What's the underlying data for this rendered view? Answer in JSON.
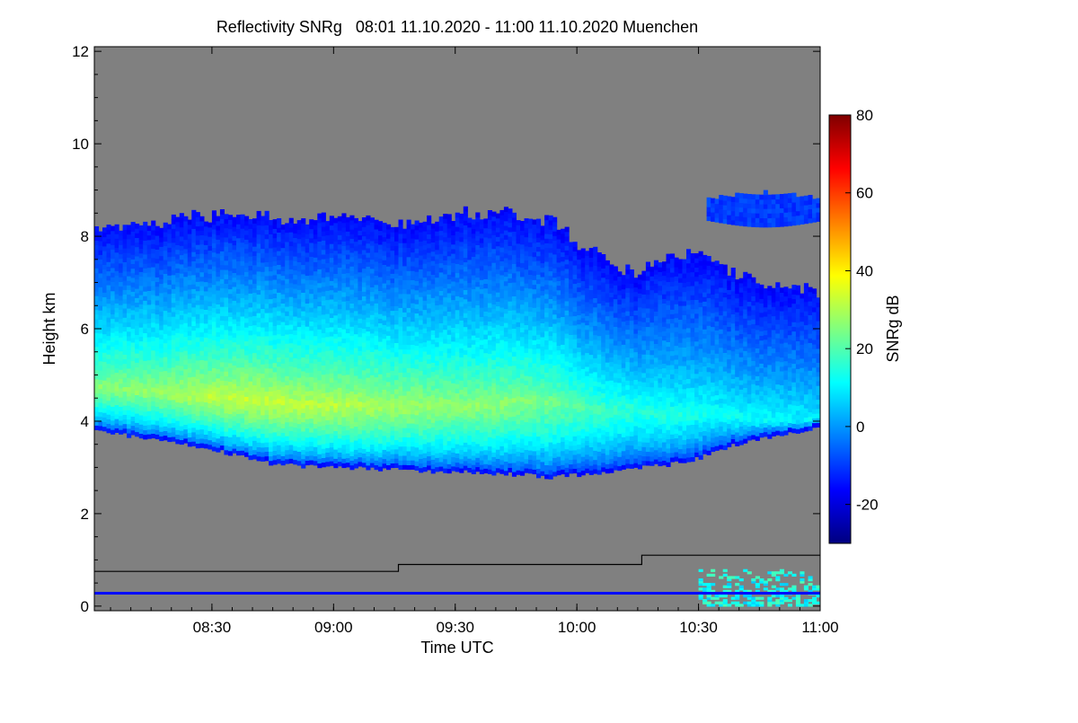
{
  "chart_data": {
    "type": "heatmap",
    "title": "Reflectivity SNRg   08:01 11.10.2020 - 11:00 11.10.2020 Muenchen",
    "xlabel": "Time UTC",
    "ylabel": "Height km",
    "x_ticks": [
      "08:30",
      "09:00",
      "09:30",
      "10:00",
      "10:30",
      "11:00"
    ],
    "x_tick_minutes": [
      30,
      60,
      90,
      120,
      150,
      180
    ],
    "xlim_minutes": [
      1,
      180
    ],
    "y_ticks": [
      0,
      2,
      4,
      6,
      8,
      10,
      12
    ],
    "ylim": [
      -0.1,
      12.1
    ],
    "background_color": "#808080",
    "colorbar": {
      "label": "SNRg dB",
      "ticks": [
        -20,
        0,
        20,
        40,
        60,
        80
      ],
      "range": [
        -30,
        80
      ],
      "colormap": "jet"
    },
    "cloud_layer": {
      "time_minutes": [
        1,
        8,
        15,
        22,
        29,
        36,
        43,
        50,
        57,
        64,
        71,
        78,
        85,
        92,
        99,
        106,
        113,
        120,
        127,
        134,
        141,
        148,
        155,
        162,
        169,
        176,
        180
      ],
      "base_km": [
        3.8,
        3.7,
        3.6,
        3.5,
        3.4,
        3.25,
        3.1,
        3.05,
        3.0,
        3.0,
        2.95,
        2.95,
        2.9,
        2.9,
        2.85,
        2.85,
        2.8,
        2.85,
        2.9,
        3.0,
        3.05,
        3.15,
        3.4,
        3.6,
        3.7,
        3.8,
        3.9
      ],
      "top_km": [
        8.2,
        8.2,
        8.25,
        8.35,
        8.4,
        8.45,
        8.4,
        8.2,
        8.3,
        8.4,
        8.2,
        8.2,
        8.3,
        8.45,
        8.45,
        8.4,
        8.3,
        7.8,
        7.4,
        7.1,
        7.5,
        7.6,
        7.3,
        7.0,
        6.9,
        6.8,
        6.6
      ],
      "peak_height_km": [
        4.7,
        4.65,
        4.6,
        4.55,
        4.5,
        4.45,
        4.4,
        4.35,
        4.3,
        4.3,
        4.3,
        4.3,
        4.3,
        4.3,
        4.35,
        4.4,
        4.4,
        4.3,
        4.2,
        4.2,
        4.1,
        4.1,
        4.1,
        4.0,
        4.0,
        4.0,
        4.0
      ],
      "peak_snr_db": [
        26,
        27,
        28,
        30,
        32,
        33,
        33,
        32,
        32,
        31,
        30,
        29,
        28,
        27,
        27,
        26,
        24,
        21,
        18,
        16,
        15,
        14,
        13,
        12,
        12,
        11,
        10
      ]
    },
    "upper_patch": {
      "time_minutes": [
        152,
        180
      ],
      "base_km": 8.2,
      "top_km": 8.9,
      "snr_db": -10
    },
    "black_line": {
      "time_minutes": [
        1,
        76,
        76,
        136,
        136,
        180
      ],
      "height_km": [
        0.75,
        0.75,
        0.9,
        0.9,
        1.1,
        1.1
      ]
    },
    "blue_line": {
      "height_km": 0.28,
      "snr_db": -15
    },
    "near_ground_clutter": {
      "time_minutes": [
        150,
        180
      ],
      "height_km": [
        0.0,
        0.8
      ],
      "snr_db": [
        5,
        20
      ]
    }
  }
}
